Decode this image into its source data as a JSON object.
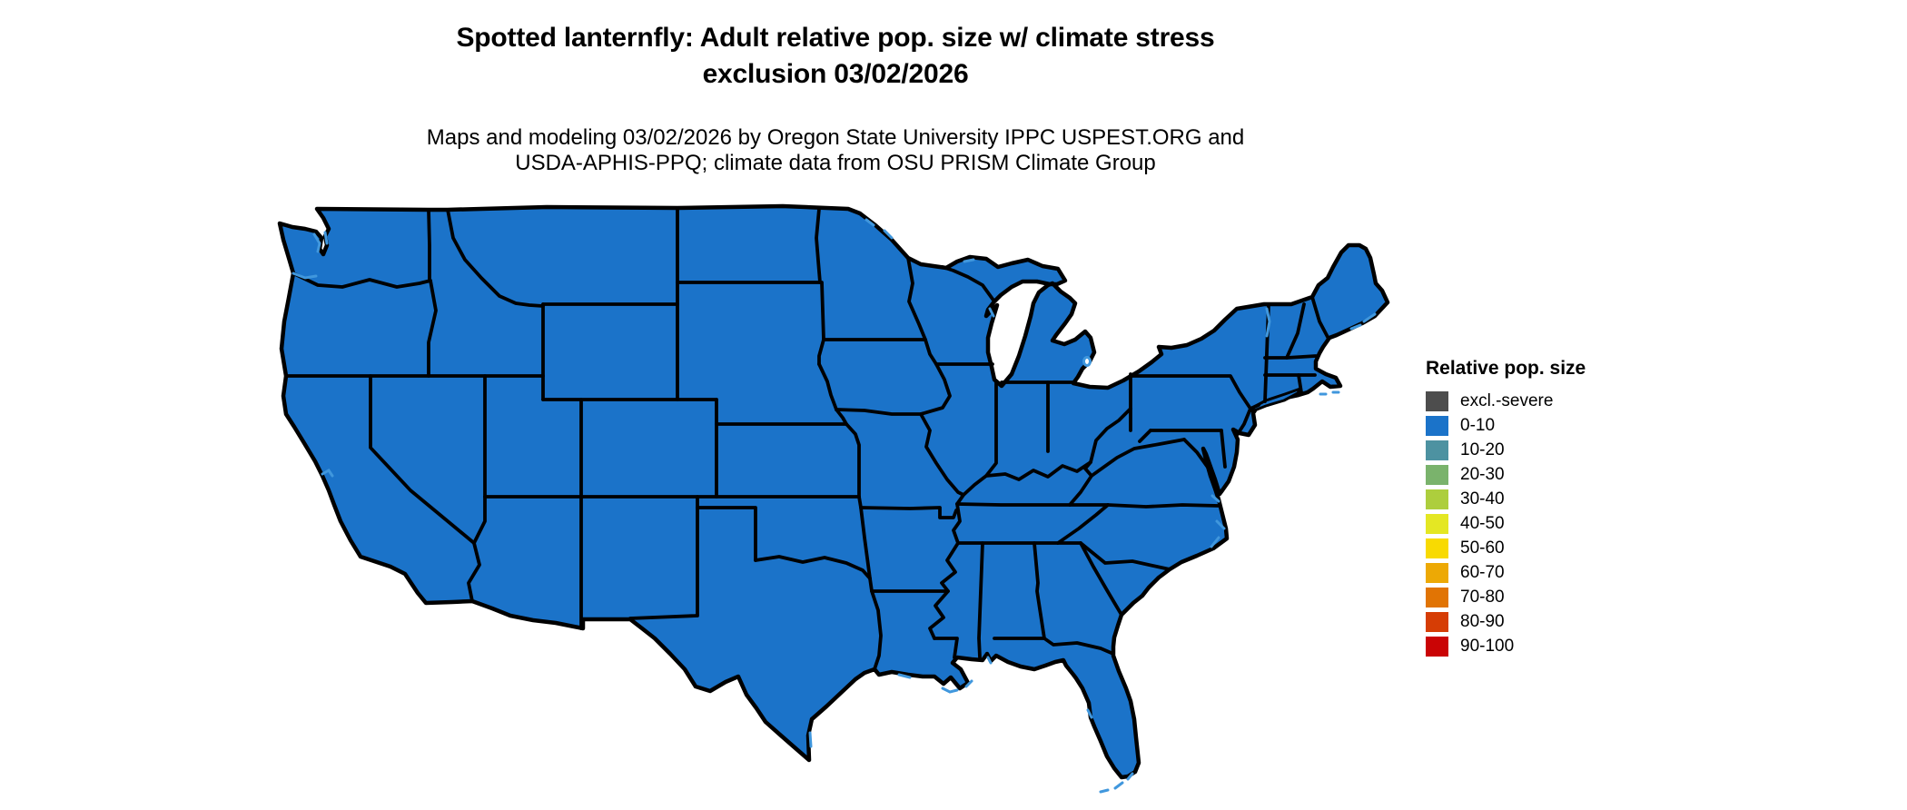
{
  "title": {
    "line1": "Spotted lanternfly: Adult relative pop. size w/ climate stress",
    "line2": "exclusion 03/02/2026"
  },
  "subtitle": {
    "line1": "Maps and modeling 03/02/2026 by Oregon State University IPPC USPEST.ORG and",
    "line2": "USDA-APHIS-PPQ; climate data from OSU PRISM Climate Group"
  },
  "legend": {
    "title": "Relative pop. size",
    "entries": [
      {
        "label": "excl.-severe",
        "color": "#4d4d4d"
      },
      {
        "label": "0-10",
        "color": "#1b73c9"
      },
      {
        "label": "10-20",
        "color": "#4d92a1"
      },
      {
        "label": "20-30",
        "color": "#7ab36c"
      },
      {
        "label": "30-40",
        "color": "#adce3d"
      },
      {
        "label": "40-50",
        "color": "#e4e723"
      },
      {
        "label": "50-60",
        "color": "#f8da02"
      },
      {
        "label": "60-70",
        "color": "#eda905"
      },
      {
        "label": "70-80",
        "color": "#e17404"
      },
      {
        "label": "80-90",
        "color": "#d63d05"
      },
      {
        "label": "90-100",
        "color": "#ca0405"
      }
    ]
  },
  "map": {
    "region": "Contiguous United States",
    "fill_class": "0-10",
    "fill_color": "#1b73c9",
    "border_color": "#000000",
    "water_color": "#4097dd",
    "background_color": "#ffffff"
  },
  "chart_data": {
    "type": "choropleth",
    "title": "Spotted lanternfly adult relative population size with climate stress exclusion, 03/02/2026",
    "classes": [
      "excl.-severe",
      "0-10",
      "10-20",
      "20-30",
      "30-40",
      "40-50",
      "50-60",
      "60-70",
      "70-80",
      "80-90",
      "90-100"
    ],
    "class_colors": [
      "#4d4d4d",
      "#1b73c9",
      "#4d92a1",
      "#7ab36c",
      "#adce3d",
      "#e4e723",
      "#f8da02",
      "#eda905",
      "#e17404",
      "#d63d05",
      "#ca0405"
    ],
    "observation": "All contiguous US states are shown in the 0-10 relative population size class"
  }
}
